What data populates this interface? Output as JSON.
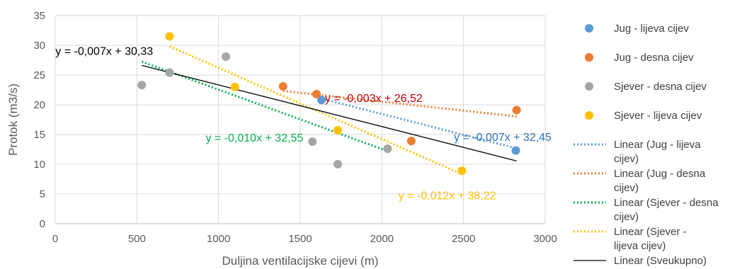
{
  "chart_data": {
    "type": "scatter",
    "xlabel": "Duljina ventilacijske cijevi (m)",
    "ylabel": "Protok (m3/s)",
    "xlim": [
      0,
      3000
    ],
    "ylim": [
      0,
      35
    ],
    "xticks": [
      0,
      500,
      1000,
      1500,
      2000,
      2500,
      3000
    ],
    "yticks": [
      0,
      5,
      10,
      15,
      20,
      25,
      30,
      35
    ],
    "grid": true,
    "legend_position": "right",
    "series": [
      {
        "name": "Jug - lijeva cijev",
        "color": "#5B9BD5",
        "points": [
          [
            1630,
            20.8
          ],
          [
            2820,
            12.3
          ]
        ]
      },
      {
        "name": "Jug - desna cijev",
        "color": "#ED7D31",
        "points": [
          [
            1395,
            23.1
          ],
          [
            1600,
            21.8
          ],
          [
            2180,
            13.9
          ],
          [
            2825,
            19.1
          ]
        ]
      },
      {
        "name": "Sjever - desna cijev",
        "color": "#A5A5A5",
        "points": [
          [
            530,
            23.3
          ],
          [
            700,
            25.4
          ],
          [
            1045,
            28.1
          ],
          [
            1575,
            13.8
          ],
          [
            1730,
            10.0
          ],
          [
            2035,
            12.6
          ]
        ]
      },
      {
        "name": "Sjever - lijeva cijev",
        "color": "#FFC000",
        "points": [
          [
            700,
            31.5
          ],
          [
            1100,
            23.0
          ],
          [
            1730,
            15.7
          ],
          [
            2490,
            8.9
          ]
        ]
      }
    ],
    "trendlines": [
      {
        "name": "Linear (Jug - lijeva cijev)",
        "color": "#5B9BD5",
        "dash": "dotted",
        "x_range": [
          1630,
          2820
        ],
        "slope": -0.007,
        "intercept": 32.45,
        "equation": "y = -0,007x + 32,45"
      },
      {
        "name": "Linear (Jug - desna cijev)",
        "color": "#ED7D31",
        "dash": "dotted",
        "x_range": [
          1395,
          2825
        ],
        "slope": -0.003,
        "intercept": 26.52,
        "equation": "y = -0,003x + 26,52"
      },
      {
        "name": "Linear (Sjever - desna cijev)",
        "color": "#00B050",
        "dash": "dotted",
        "x_range": [
          530,
          2035
        ],
        "slope": -0.01,
        "intercept": 32.55,
        "equation": "y = -0,010x + 32,55"
      },
      {
        "name": "Linear (Sjever - lijeva cijev)",
        "color": "#FFC000",
        "dash": "dotted",
        "x_range": [
          700,
          2490
        ],
        "slope": -0.012,
        "intercept": 38.22,
        "equation": "y = -0,012x + 38,22"
      },
      {
        "name": "Linear (Sveukupno)",
        "color": "#000000",
        "dash": "solid",
        "x_range": [
          530,
          2825
        ],
        "slope": -0.007,
        "intercept": 30.33,
        "equation": "y = -0,007x + 30,33"
      }
    ],
    "annotations": [
      {
        "text": "y = -0,007x + 30,33",
        "color": "#000000",
        "x": 300,
        "y": 28.4
      },
      {
        "text": "y = -0,003x + 26,52",
        "color": "#C00000",
        "x": 1950,
        "y": 20.5
      },
      {
        "text": "y = -0,010x + 32,55",
        "color": "#00B050",
        "x": 1220,
        "y": 13.8
      },
      {
        "text": "y = -0,007x + 32,45",
        "color": "#2E75B6",
        "x": 2740,
        "y": 13.9
      },
      {
        "text": "y = -0,012x + 38,22",
        "color": "#FFC000",
        "x": 2400,
        "y": 4.1
      }
    ]
  }
}
